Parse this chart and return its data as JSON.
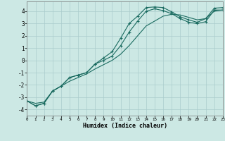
{
  "xlabel": "Humidex (Indice chaleur)",
  "bg_color": "#cce8e4",
  "grid_color": "#aacccc",
  "line_color": "#1a6b60",
  "xlim": [
    0,
    23
  ],
  "ylim": [
    -4.5,
    4.8
  ],
  "yticks": [
    -4,
    -3,
    -2,
    -1,
    0,
    1,
    2,
    3,
    4
  ],
  "xticks": [
    0,
    1,
    2,
    3,
    4,
    5,
    6,
    7,
    8,
    9,
    10,
    11,
    12,
    13,
    14,
    15,
    16,
    17,
    18,
    19,
    20,
    21,
    22,
    23
  ],
  "upper_x": [
    0,
    1,
    2,
    3,
    4,
    5,
    6,
    7,
    8,
    9,
    10,
    11,
    12,
    13,
    14,
    15,
    16,
    17,
    18,
    19,
    20,
    21,
    22,
    23
  ],
  "upper_y": [
    -3.3,
    -3.7,
    -3.5,
    -2.5,
    -2.1,
    -1.4,
    -1.2,
    -1.0,
    -0.3,
    0.2,
    0.7,
    1.8,
    3.0,
    3.6,
    4.3,
    4.35,
    4.3,
    3.95,
    3.55,
    3.3,
    3.1,
    3.4,
    4.25,
    4.3
  ],
  "middle_x": [
    0,
    1,
    2,
    3,
    4,
    5,
    6,
    7,
    8,
    9,
    10,
    11,
    12,
    13,
    14,
    15,
    16,
    17,
    18,
    19,
    20,
    21,
    22,
    23
  ],
  "middle_y": [
    -3.3,
    -3.7,
    -3.5,
    -2.5,
    -2.1,
    -1.4,
    -1.2,
    -1.0,
    -0.3,
    0.0,
    0.35,
    1.2,
    2.3,
    3.2,
    4.0,
    4.2,
    4.05,
    3.8,
    3.4,
    3.1,
    3.0,
    3.15,
    4.1,
    4.1
  ],
  "lower_x": [
    0,
    1,
    2,
    3,
    4,
    5,
    6,
    7,
    8,
    9,
    10,
    11,
    12,
    13,
    14,
    15,
    16,
    17,
    18,
    19,
    20,
    21,
    22,
    23
  ],
  "lower_y": [
    -3.3,
    -3.5,
    -3.4,
    -2.5,
    -2.1,
    -1.7,
    -1.4,
    -1.1,
    -0.7,
    -0.35,
    0.0,
    0.5,
    1.2,
    2.0,
    2.8,
    3.2,
    3.6,
    3.75,
    3.7,
    3.5,
    3.3,
    3.4,
    4.0,
    4.1
  ]
}
